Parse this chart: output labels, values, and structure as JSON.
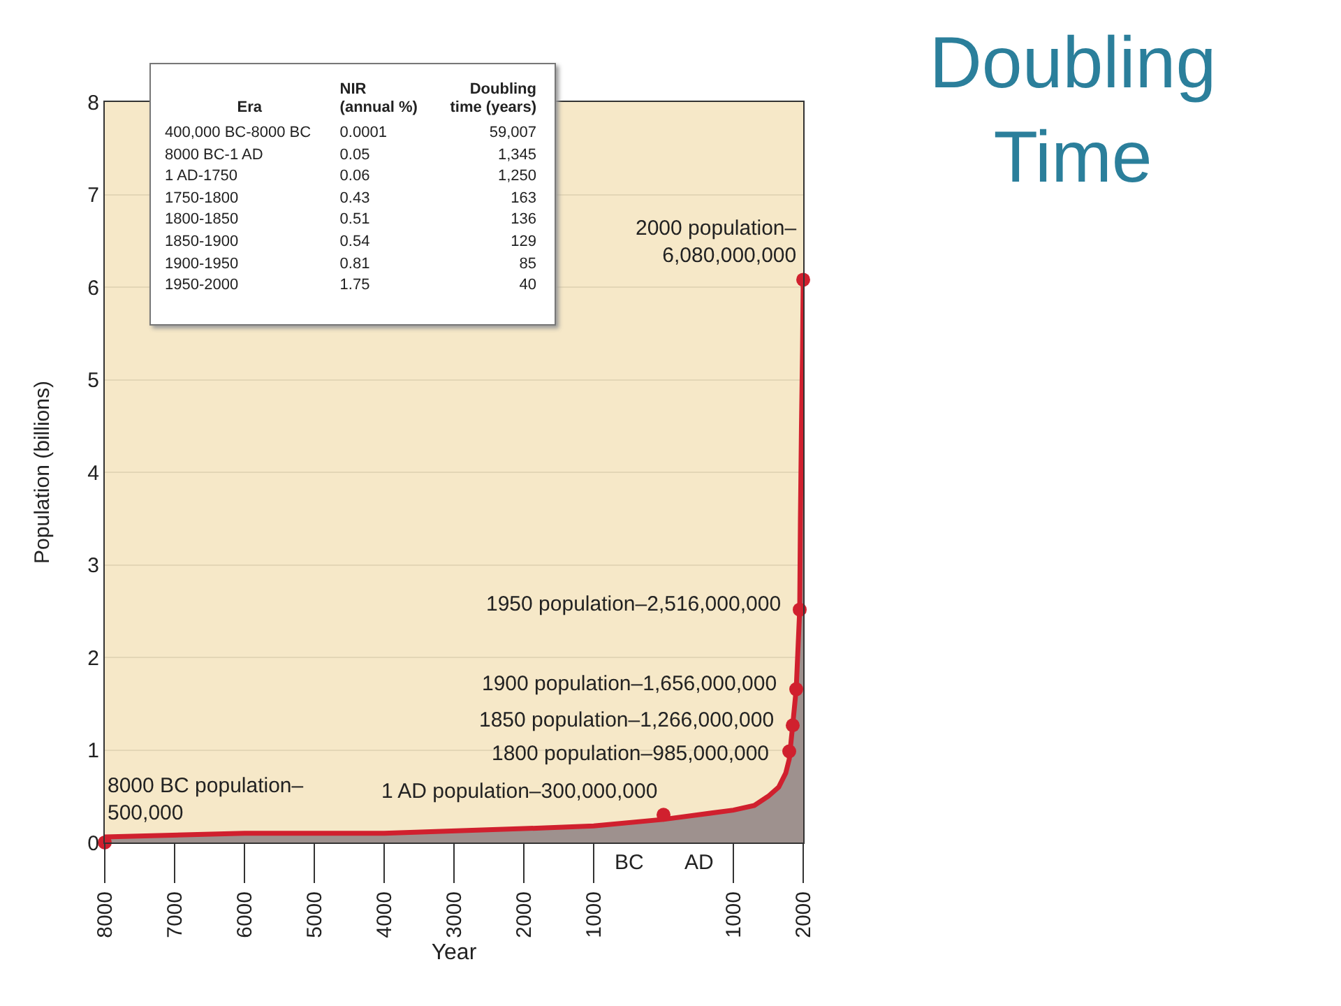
{
  "chart_data": {
    "type": "area",
    "title": "Doubling\nTime",
    "xlabel": "Year",
    "ylabel": "Population (billions)",
    "xlim": [
      -8000,
      2000
    ],
    "xticks": [
      {
        "value": -8000,
        "label": "8000"
      },
      {
        "value": -7000,
        "label": "7000"
      },
      {
        "value": -6000,
        "label": "6000"
      },
      {
        "value": -5000,
        "label": "5000"
      },
      {
        "value": -4000,
        "label": "4000"
      },
      {
        "value": -3000,
        "label": "3000"
      },
      {
        "value": -2000,
        "label": "2000"
      },
      {
        "value": -1000,
        "label": "1000"
      },
      {
        "value": 1000,
        "label": "1000"
      },
      {
        "value": 2000,
        "label": "2000"
      }
    ],
    "ylim": [
      0,
      8
    ],
    "yticks": [
      0,
      1,
      2,
      3,
      4,
      5,
      6,
      7,
      8
    ],
    "grid": "y",
    "series": [
      {
        "color": "#d0202e",
        "x": [
          -8000,
          -6000,
          -4000,
          -2000,
          -1000,
          0,
          500,
          1000,
          1300,
          1500,
          1650,
          1750,
          1800,
          1850,
          1900,
          1950,
          1960,
          1975,
          1990,
          2000
        ],
        "values": [
          0.06,
          0.1,
          0.1,
          0.15,
          0.18,
          0.25,
          0.3,
          0.35,
          0.4,
          0.5,
          0.6,
          0.75,
          0.9,
          1.27,
          1.66,
          2.52,
          3.5,
          4.5,
          5.3,
          6.08
        ]
      },
      {
        "type": "scatter",
        "color": "#d0202e",
        "marker": "circle",
        "x": [
          -8000,
          0,
          1800,
          1850,
          1900,
          1950,
          2000
        ],
        "values": [
          0.0005,
          0.3,
          0.985,
          1.266,
          1.656,
          2.516,
          6.08
        ]
      }
    ],
    "annotations": [
      "Era",
      "NIR\n(annual %)",
      "Doubling\ntime (years)",
      "400,000 BC-8000 BC",
      "0.0001",
      "59,007",
      "8000 BC-1 AD",
      "0.05",
      "1,345",
      "1 AD-1750",
      "0.06",
      "1,250",
      "1750-1800",
      "0.43",
      "163",
      "1800-1850",
      "0.51",
      "136",
      "1850-1900",
      "0.54",
      "129",
      "1900-1950",
      "0.81",
      "85",
      "1950-2000",
      "1.75",
      "40",
      "BC",
      "AD",
      {
        "text": "8000 BC population–\n500,000",
        "x": -8000,
        "y": 0.0005
      },
      {
        "text": "1 AD population–300,000,000",
        "x": 0,
        "y": 0.3
      },
      {
        "text": "1800 population–985,000,000",
        "x": 1800,
        "y": 0.985
      },
      {
        "text": "1850 population–1,266,000,000",
        "x": 1850,
        "y": 1.266
      },
      {
        "text": "1900 population–1,656,000,000",
        "x": 1900,
        "y": 1.656
      },
      {
        "text": "1950 population–2,516,000,000",
        "x": 1950,
        "y": 2.516
      },
      {
        "text": "2000 population–\n6,080,000,000",
        "x": 2000,
        "y": 6.08
      }
    ]
  }
}
